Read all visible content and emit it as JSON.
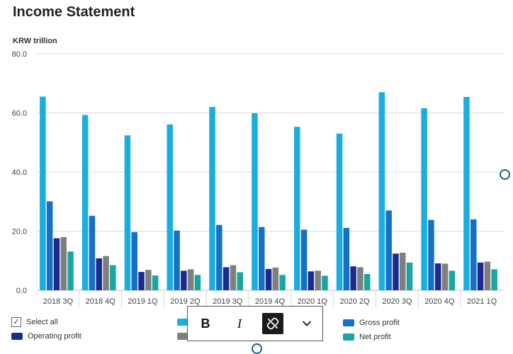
{
  "title": "Income Statement",
  "legend": {
    "select_all": "Select all",
    "items": [
      {
        "label": "",
        "color": "#1aaee0"
      },
      {
        "label": "Gross profit",
        "color": "#1471c4"
      },
      {
        "label": "Operating profit",
        "color": "#1a2b8f"
      },
      {
        "label": "",
        "color": "#7f7f7f"
      },
      {
        "label": "Net profit",
        "color": "#1aa6a0"
      }
    ]
  },
  "toolbar": {
    "bold_label": "B",
    "italic_label": "I",
    "icons": [
      "unlink-icon",
      "chevron-down-icon"
    ]
  },
  "chart_data": {
    "type": "bar",
    "ylabel": "KRW trillion",
    "ylim": [
      0,
      80
    ],
    "yticks": [
      "0.0",
      "20.0",
      "40.0",
      "60.0",
      "80.0"
    ],
    "grid": true,
    "legend_position": "bottom",
    "categories": [
      "2018 3Q",
      "2018 4Q",
      "2019 1Q",
      "2019 2Q",
      "2019 3Q",
      "2019 4Q",
      "2020 1Q",
      "2020 2Q",
      "2020 3Q",
      "2020 4Q",
      "2021 1Q"
    ],
    "series": [
      {
        "name": "",
        "color": "#1aaee0",
        "values": [
          65.5,
          59.3,
          52.4,
          56.1,
          62.0,
          59.9,
          55.3,
          53.0,
          67.0,
          61.6,
          65.4
        ]
      },
      {
        "name": "Gross profit",
        "color": "#1471c4",
        "values": [
          30.1,
          25.2,
          19.7,
          20.2,
          22.1,
          21.4,
          20.5,
          21.1,
          27.0,
          23.8,
          24.0
        ]
      },
      {
        "name": "Operating profit",
        "color": "#1a2b8f",
        "values": [
          17.6,
          10.8,
          6.2,
          6.6,
          7.8,
          7.2,
          6.4,
          8.1,
          12.4,
          9.1,
          9.4
        ]
      },
      {
        "name": "",
        "color": "#7f7f7f",
        "values": [
          18.0,
          11.6,
          6.9,
          7.1,
          8.5,
          7.7,
          6.6,
          7.8,
          12.7,
          9.0,
          9.7
        ]
      },
      {
        "name": "Net profit",
        "color": "#1aa6a0",
        "values": [
          13.1,
          8.5,
          5.0,
          5.2,
          6.1,
          5.2,
          4.9,
          5.5,
          9.4,
          6.6,
          7.1
        ]
      }
    ]
  }
}
